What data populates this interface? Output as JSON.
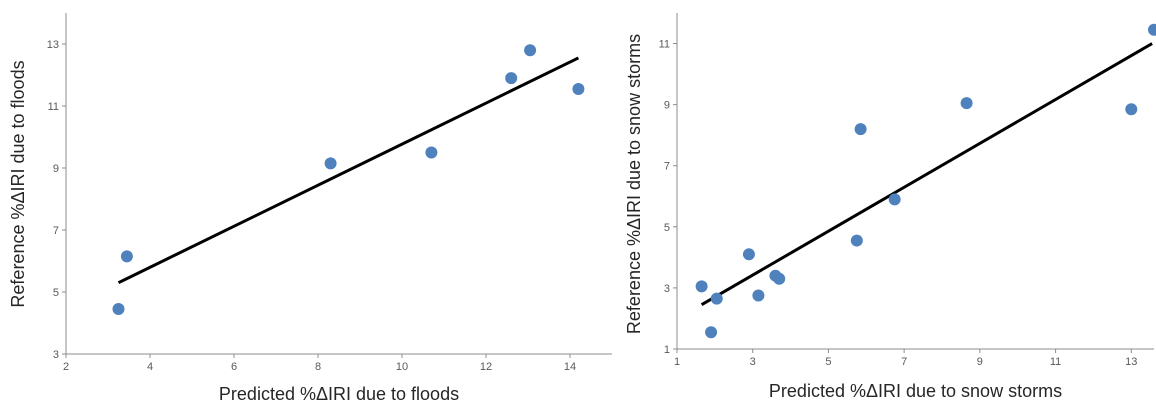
{
  "chart_data": [
    {
      "type": "scatter",
      "xlabel": "Predicted %ΔIRI due to floods",
      "ylabel": "Reference %ΔIRI due to floods",
      "xlim": [
        2,
        15
      ],
      "ylim": [
        3,
        14
      ],
      "xticks": [
        2,
        4,
        6,
        8,
        10,
        12,
        14
      ],
      "yticks": [
        3,
        5,
        7,
        9,
        11,
        13
      ],
      "grid": false,
      "series": [
        {
          "points": [
            {
              "x": 3.25,
              "y": 4.45
            },
            {
              "x": 3.45,
              "y": 6.15
            },
            {
              "x": 8.3,
              "y": 9.15
            },
            {
              "x": 10.7,
              "y": 9.5
            },
            {
              "x": 12.6,
              "y": 11.9
            },
            {
              "x": 13.05,
              "y": 12.8
            },
            {
              "x": 14.2,
              "y": 11.55
            }
          ]
        }
      ],
      "trendline": {
        "x": [
          3.25,
          14.2
        ],
        "y": [
          5.3,
          12.55
        ]
      }
    },
    {
      "type": "scatter",
      "xlabel": "Predicted %ΔIRI due to snow storms",
      "ylabel": "Reference %ΔIRI due to snow storms",
      "xlim": [
        1,
        13.6
      ],
      "ylim": [
        1,
        12
      ],
      "xticks": [
        1,
        3,
        5,
        7,
        9,
        11,
        13
      ],
      "yticks": [
        1,
        3,
        5,
        7,
        9,
        11
      ],
      "grid": false,
      "series": [
        {
          "points": [
            {
              "x": 1.65,
              "y": 3.05
            },
            {
              "x": 1.9,
              "y": 1.55
            },
            {
              "x": 2.05,
              "y": 2.65
            },
            {
              "x": 2.9,
              "y": 4.1
            },
            {
              "x": 3.15,
              "y": 2.75
            },
            {
              "x": 3.6,
              "y": 3.4
            },
            {
              "x": 3.7,
              "y": 3.3
            },
            {
              "x": 5.75,
              "y": 4.55
            },
            {
              "x": 5.85,
              "y": 8.2
            },
            {
              "x": 6.75,
              "y": 5.9
            },
            {
              "x": 8.65,
              "y": 9.05
            },
            {
              "x": 13.0,
              "y": 8.85
            },
            {
              "x": 13.6,
              "y": 11.45
            }
          ]
        }
      ],
      "trendline": {
        "x": [
          1.65,
          13.55
        ],
        "y": [
          2.45,
          11.0
        ]
      }
    }
  ]
}
